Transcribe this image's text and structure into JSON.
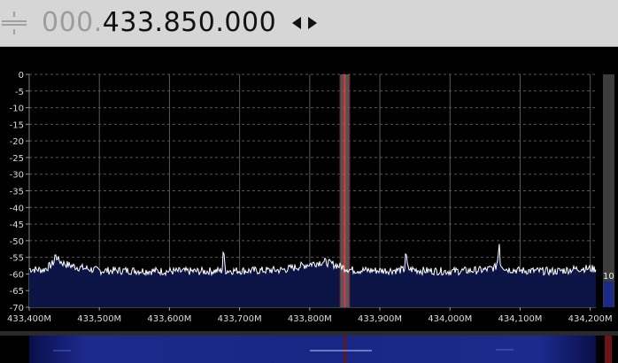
{
  "toolbar": {
    "frequency_leading": "000.",
    "frequency_main": "433.850.000",
    "handle_icon": "grip-lines-icon",
    "tuning_icon": "left-right-arrows-icon"
  },
  "meter": {
    "value_label": "10"
  },
  "colors": {
    "background": "#000000",
    "grid": "#5a5a5a",
    "trace": "#ffffff",
    "fill": "#0c1446",
    "vfo_line": "#ff3030",
    "vfo_band": "#7d6a6a",
    "axis_text": "#dcdcdc"
  },
  "chart_data": {
    "type": "line",
    "title": "",
    "xlabel": "",
    "ylabel": "",
    "x_ticks": [
      "433,400M",
      "433,500M",
      "433,600M",
      "433,700M",
      "433,800M",
      "433,900M",
      "434,000M",
      "434,100M",
      "434,200M"
    ],
    "x_tick_values": [
      433.4,
      433.5,
      433.6,
      433.7,
      433.8,
      433.9,
      434.0,
      434.1,
      434.2
    ],
    "y_ticks": [
      "0",
      "-5",
      "-10",
      "-15",
      "-20",
      "-25",
      "-30",
      "-35",
      "-40",
      "-45",
      "-50",
      "-55",
      "-60",
      "-65",
      "-70"
    ],
    "xlim": [
      433.4,
      434.208
    ],
    "ylim": [
      -70,
      0
    ],
    "grid": true,
    "noise_floor_db": -58.8,
    "noise_spread_db": 1.2,
    "vfo_freq": 433.85,
    "vfo_width_mhz": 0.014,
    "series": [
      {
        "points": [
          [
            433.4,
            -58.5
          ],
          [
            433.42,
            -58.8
          ],
          [
            433.43,
            -57.5
          ],
          [
            433.435,
            -56.5
          ],
          [
            433.437,
            -54.3
          ],
          [
            433.44,
            -55.6
          ],
          [
            433.45,
            -57.0
          ],
          [
            433.47,
            -58.0
          ],
          [
            433.5,
            -59.0
          ],
          [
            433.55,
            -59.0
          ],
          [
            433.6,
            -59.2
          ],
          [
            433.65,
            -59.2
          ],
          [
            433.675,
            -59.0
          ],
          [
            433.677,
            -53.5
          ],
          [
            433.68,
            -59.0
          ],
          [
            433.72,
            -59.0
          ],
          [
            433.76,
            -58.8
          ],
          [
            433.78,
            -58.0
          ],
          [
            433.8,
            -57.0
          ],
          [
            433.82,
            -56.3
          ],
          [
            433.84,
            -57.5
          ],
          [
            433.86,
            -58.8
          ],
          [
            433.9,
            -59.0
          ],
          [
            433.935,
            -58.8
          ],
          [
            433.937,
            -54.0
          ],
          [
            433.94,
            -58.5
          ],
          [
            433.96,
            -59.0
          ],
          [
            434.0,
            -59.2
          ],
          [
            434.05,
            -58.8
          ],
          [
            434.065,
            -58.0
          ],
          [
            434.068,
            -56.0
          ],
          [
            434.07,
            -51.0
          ],
          [
            434.072,
            -57.0
          ],
          [
            434.08,
            -58.5
          ],
          [
            434.1,
            -59.0
          ],
          [
            434.15,
            -59.2
          ],
          [
            434.18,
            -58.5
          ],
          [
            434.19,
            -58.3
          ],
          [
            434.208,
            -58.5
          ]
        ]
      }
    ]
  }
}
